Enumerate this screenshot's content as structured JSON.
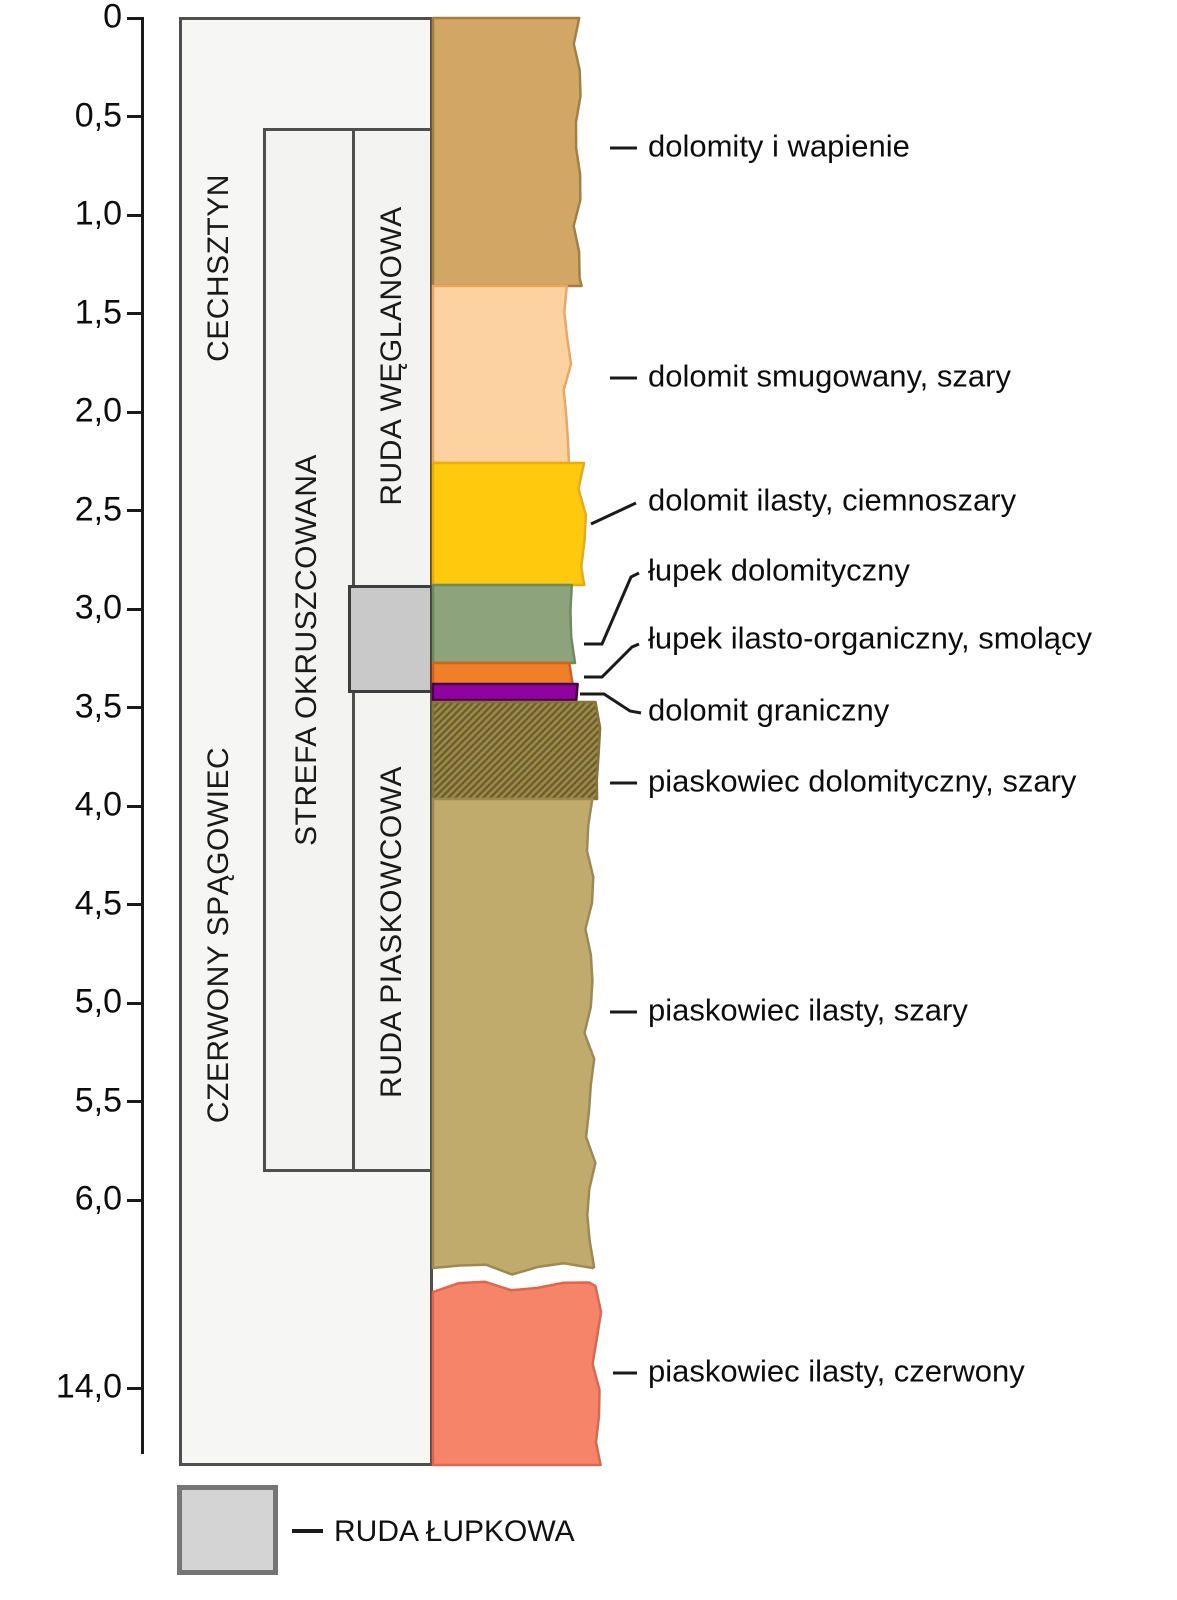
{
  "diagram": {
    "type": "stratigraphic-column",
    "depth_axis": {
      "unit": "m",
      "ticks": [
        {
          "label": "0",
          "m": 0
        },
        {
          "label": "0,5",
          "m": 0.5
        },
        {
          "label": "1,0",
          "m": 1.0
        },
        {
          "label": "1,5",
          "m": 1.5
        },
        {
          "label": "2,0",
          "m": 2.0
        },
        {
          "label": "2,5",
          "m": 2.5
        },
        {
          "label": "3,0",
          "m": 3.0
        },
        {
          "label": "3,5",
          "m": 3.5
        },
        {
          "label": "4,0",
          "m": 4.0
        },
        {
          "label": "4,5",
          "m": 4.5
        },
        {
          "label": "5,0",
          "m": 5.0
        },
        {
          "label": "5,5",
          "m": 5.5
        },
        {
          "label": "6,0",
          "m": 6.0
        },
        {
          "label": "14,0",
          "m": 14.0
        }
      ],
      "broken_scale_between": [
        6.0,
        14.0
      ]
    },
    "units": {
      "cechsztyn": "CECHSZTYN",
      "czerwony_spagowiec": "CZERWONY SPĄGOWIEC",
      "strefa_okruszcowana": "STREFA OKRUSZCOWANA",
      "ruda_weglanowa": "RUDA WĘGLANOWA",
      "ruda_piaskowcowa": "RUDA PIASKOWCOWA"
    },
    "layers": [
      {
        "label": "dolomity i wapienie",
        "color": "#D2A765",
        "stroke": "#A5803A",
        "depth_top_m": 0,
        "depth_bottom_m": 1.35
      },
      {
        "label": "dolomit smugowany, szary",
        "color": "#FCD3A0",
        "stroke": "#F0A55C",
        "depth_top_m": 1.35,
        "depth_bottom_m": 2.25
      },
      {
        "label": "dolomit ilasty, ciemnoszary",
        "color": "#FFC90D",
        "stroke": "#ECAC00",
        "depth_top_m": 2.25,
        "depth_bottom_m": 2.9
      },
      {
        "label": "łupek dolomityczny",
        "color": "#8CA37B",
        "stroke": "#6F8A5E",
        "depth_top_m": 2.9,
        "depth_bottom_m": 3.25
      },
      {
        "label": "łupek ilasto-organiczny, smolący",
        "color": "#F08027",
        "stroke": "#D2611A",
        "depth_top_m": 3.25,
        "depth_bottom_m": 3.4
      },
      {
        "label": "dolomit graniczny",
        "color": "#9103A0",
        "stroke": "#470049",
        "depth_top_m": 3.4,
        "depth_bottom_m": 3.45
      },
      {
        "label": "piaskowiec dolomityczny, szary",
        "color": "#9C8A49",
        "stroke": "#857539",
        "hatch_color": "#6D5F2D",
        "pattern": "diagonal-hatch",
        "depth_top_m": 3.45,
        "depth_bottom_m": 3.95
      },
      {
        "label": "piaskowiec ilasty, szary",
        "color": "#C0AA6C",
        "stroke": "#9C8A4E",
        "depth_top_m": 3.95,
        "depth_bottom_m": 6.35
      },
      {
        "label": "piaskowiec ilasty, czerwony",
        "color": "#F58468",
        "stroke": "#E0654C",
        "depth_top_m": 6.4,
        "depth_bottom_m": 14.0
      }
    ],
    "legend": {
      "label": "RUDA ŁUPKOWA",
      "swatch_color": "#D4D4D4",
      "swatch_border": "#757575"
    }
  }
}
